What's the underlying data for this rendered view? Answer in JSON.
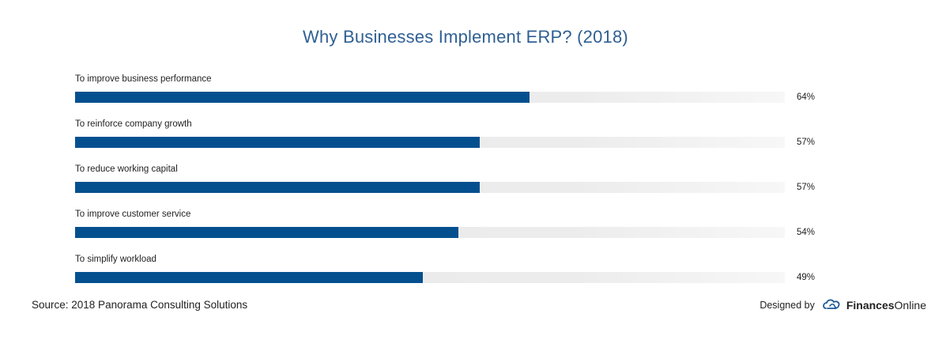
{
  "title": "Why Businesses Implement ERP? (2018)",
  "source": "Source: 2018 Panorama Consulting Solutions",
  "credit": {
    "designed_by": "Designed by",
    "brand_bold": "Finances",
    "brand_regular": "Online"
  },
  "colors": {
    "bar": "#04508f",
    "track": "#e9e9e9",
    "title": "#2f5f93"
  },
  "chart_data": {
    "type": "bar",
    "orientation": "horizontal",
    "title": "Why Businesses Implement ERP? (2018)",
    "categories": [
      "To improve business performance",
      "To reinforce company growth",
      "To reduce working capital",
      "To improve customer service",
      "To simplify workload"
    ],
    "values": [
      64,
      57,
      57,
      54,
      49
    ],
    "value_labels": [
      "64%",
      "57%",
      "57%",
      "54%",
      "49%"
    ],
    "unit": "%",
    "xlim": [
      0,
      100
    ],
    "grid": false,
    "legend": "none"
  }
}
